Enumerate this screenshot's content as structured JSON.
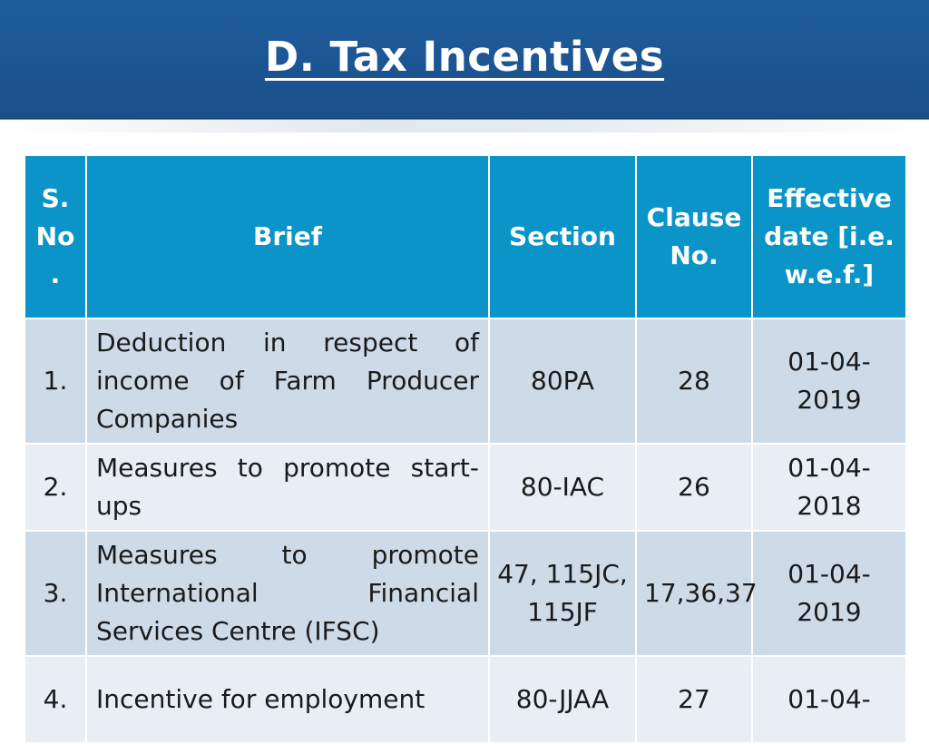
{
  "title": "D. Tax Incentives",
  "colors": {
    "header_bg": "#1f5d9e",
    "table_header_bg": "#0a94c8",
    "row_odd_bg": "#cddbe8",
    "row_even_bg": "#e8eef4"
  },
  "table": {
    "headers": {
      "sno": "S. No .",
      "brief": "Brief",
      "section": "Section",
      "clause": "Clause No.",
      "effective": "Effective date [i.e. w.e.f.]"
    },
    "rows": [
      {
        "sno": "1.",
        "brief": "Deduction in respect of income of Farm Producer Companies",
        "section": "80PA",
        "clause": "28",
        "effective": "01-04-2019"
      },
      {
        "sno": "2.",
        "brief": "Measures to promote start-ups",
        "section": "80-IAC",
        "clause": "26",
        "effective": "01-04-2018"
      },
      {
        "sno": "3.",
        "brief": "Measures to promote International Financial Services Centre (IFSC)",
        "section": "47, 115JC, 115JF",
        "clause": "17,36,37",
        "effective": "01-04-2019"
      },
      {
        "sno": "4.",
        "brief": "Incentive for employment",
        "section": "80-JJAA",
        "clause": "27",
        "effective": "01-04-"
      }
    ]
  }
}
